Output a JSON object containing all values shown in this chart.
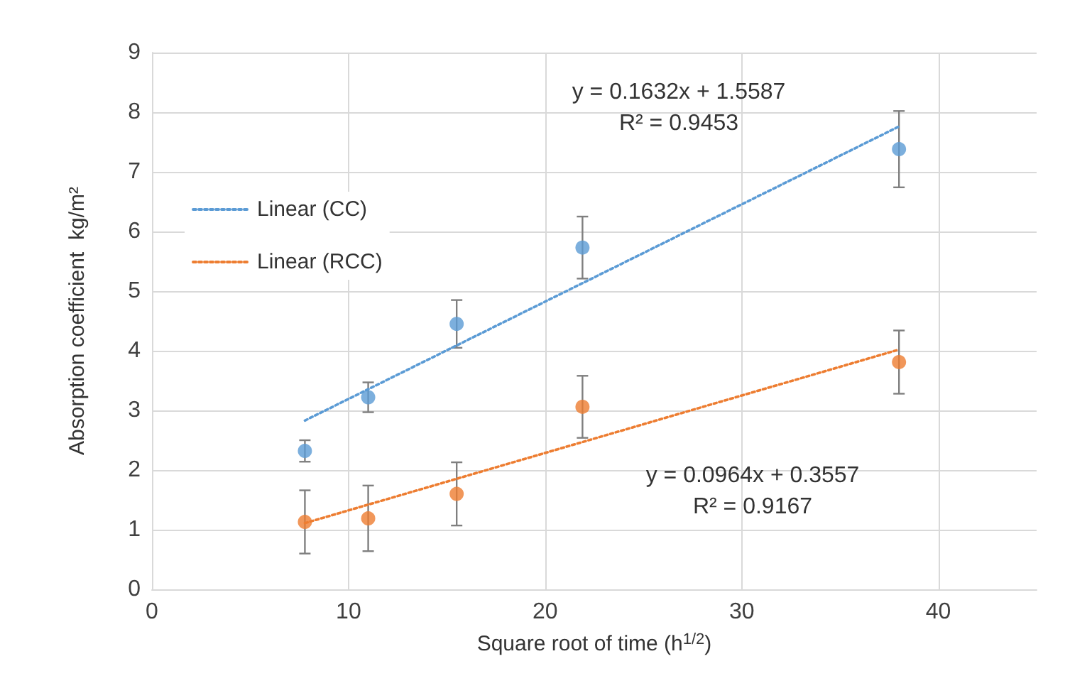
{
  "chart_data": {
    "type": "scatter",
    "xlabel": "Square root of time (h$^{1/2}$)",
    "ylabel": "Absorption coefficient  kg/m²",
    "xlim": [
      0,
      45
    ],
    "xticks": [
      0,
      10,
      20,
      30,
      40
    ],
    "ylim": [
      0,
      9
    ],
    "yticks": [
      0,
      1,
      2,
      3,
      4,
      5,
      6,
      7,
      8,
      9
    ],
    "grid": true,
    "legend": "left",
    "marker": "circle",
    "series": [
      {
        "color": "#5b9bd5",
        "x": [
          7.78,
          11.0,
          15.5,
          21.9,
          38.0
        ],
        "values": [
          2.32,
          3.22,
          4.45,
          5.73,
          7.38
        ],
        "errors": [
          0.18,
          0.25,
          0.4,
          0.52,
          0.64
        ]
      },
      {
        "color": "#ed7d31",
        "x": [
          7.78,
          11.0,
          15.5,
          21.9,
          38.0
        ],
        "values": [
          1.13,
          1.19,
          1.6,
          3.06,
          3.81
        ],
        "errors": [
          0.53,
          0.55,
          0.53,
          0.52,
          0.53
        ]
      },
      {
        "type": "line",
        "name": "Linear (CC)",
        "color": "#5b9bd5",
        "x": [
          7.78,
          38.0
        ],
        "values": [
          2.83,
          7.76
        ],
        "marker": "none",
        "line_style": "dotted"
      },
      {
        "type": "line",
        "name": "Linear (RCC)",
        "color": "#ed7d31",
        "x": [
          7.78,
          38.0
        ],
        "values": [
          1.11,
          4.02
        ],
        "marker": "none",
        "line_style": "dotted"
      }
    ],
    "annotations": [
      "y = 0.1632x + 1.5587\nR² = 0.9453",
      "y = 0.0964x + 0.3557\nR² = 0.9167"
    ]
  }
}
